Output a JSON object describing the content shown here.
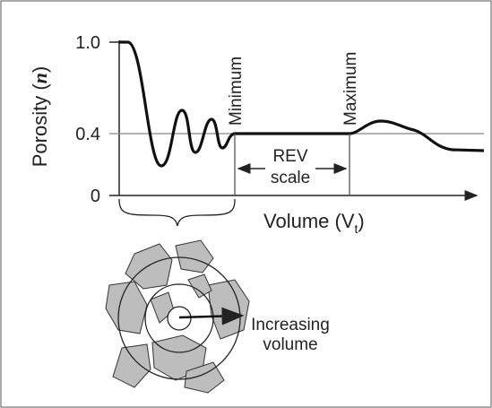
{
  "y_axis": {
    "ticks": [
      "1.0",
      "0.4",
      "0"
    ],
    "label": {
      "prefix": "Porosity (",
      "symbol": "n",
      "suffix": ")"
    }
  },
  "x_axis": {
    "label": {
      "text": "Volume (V",
      "subscript": "t",
      "suffix": ")"
    }
  },
  "markers": {
    "minimum": "Minimum",
    "maximum": "Maximum"
  },
  "rev": {
    "line1": "REV",
    "line2": "scale"
  },
  "sample": {
    "line1": "Increasing",
    "line2": "volume"
  }
}
